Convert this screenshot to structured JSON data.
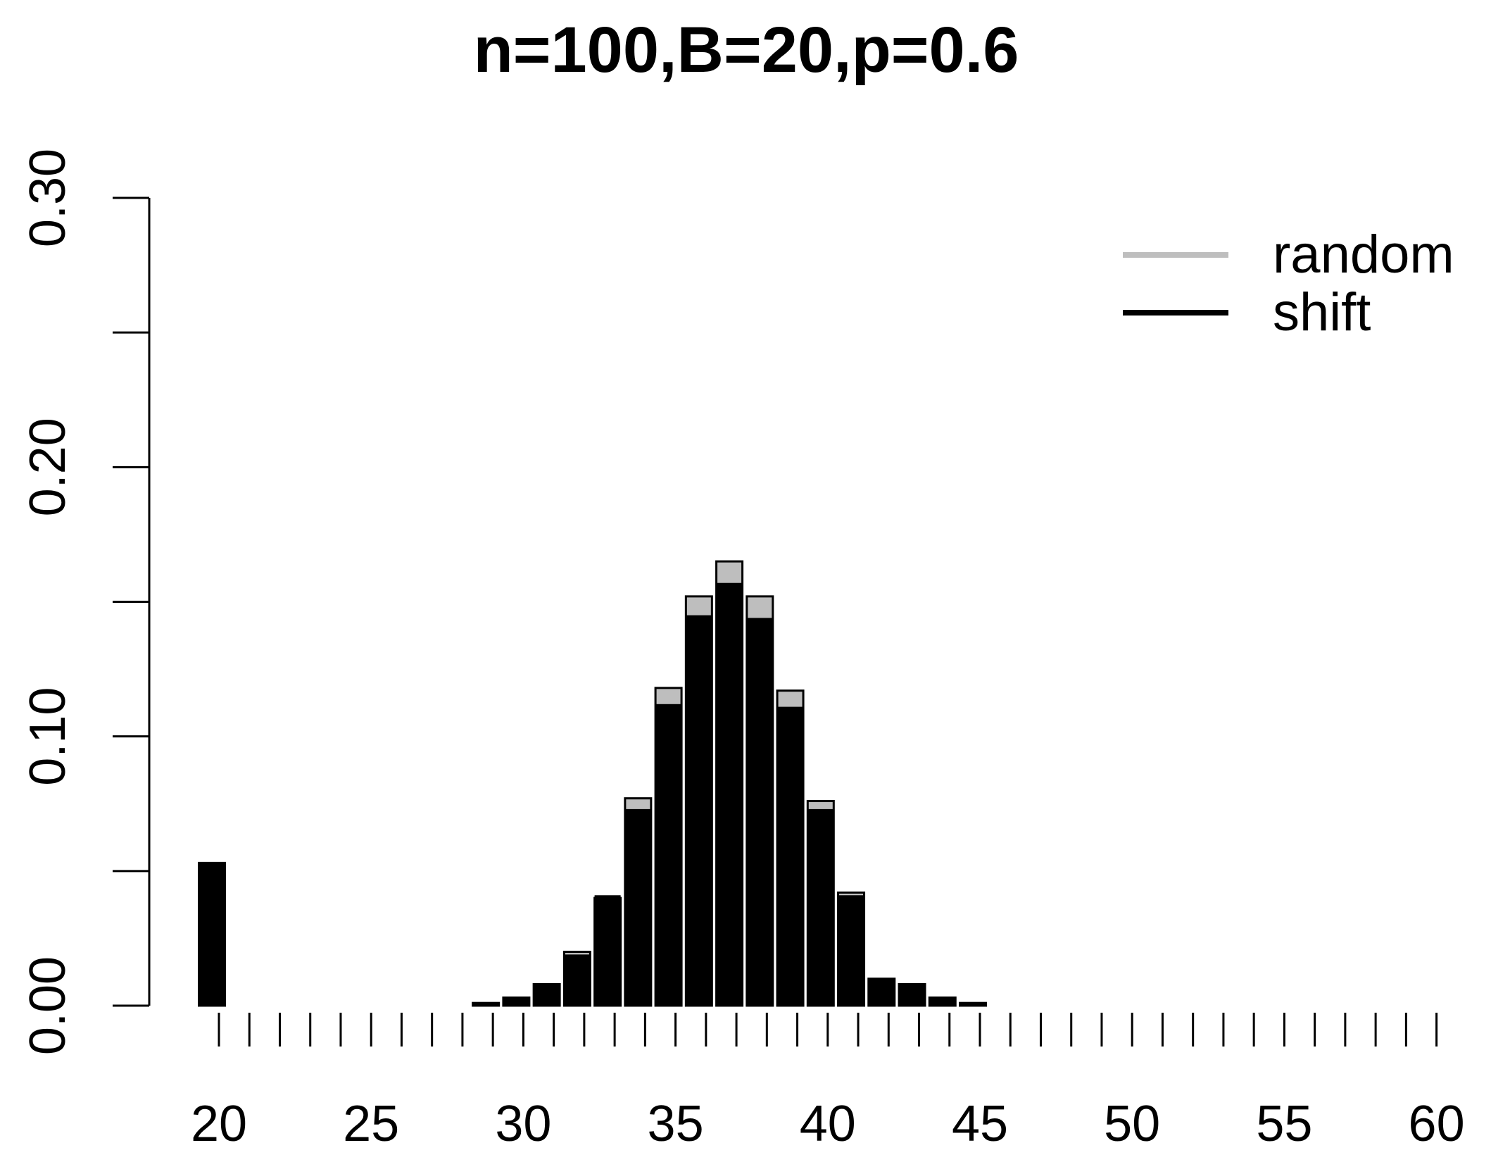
{
  "chart_data": {
    "type": "bar",
    "title": "n=100,B=20,p=0.6",
    "xlabel": "",
    "ylabel": "",
    "ylim": [
      0,
      0.3
    ],
    "yticks": [
      "0.00",
      "0.10",
      "0.20",
      "0.30"
    ],
    "xticks": [
      "20",
      "25",
      "30",
      "35",
      "40",
      "45",
      "50",
      "55",
      "60"
    ],
    "grid": false,
    "legend_position": "top-right",
    "categories": [
      20,
      21,
      22,
      23,
      24,
      25,
      26,
      27,
      28,
      29,
      30,
      31,
      32,
      33,
      34,
      35,
      36,
      37,
      38,
      39,
      40,
      41,
      42,
      43,
      44,
      45,
      46,
      47,
      48,
      49,
      50,
      51,
      52,
      53,
      54,
      55,
      56,
      57,
      58,
      59,
      60
    ],
    "series": [
      {
        "name": "random",
        "color": "#bebebe",
        "values": [
          0.053,
          0,
          0,
          0,
          0,
          0,
          0,
          0,
          0,
          0.001,
          0.003,
          0.008,
          0.02,
          0.04,
          0.077,
          0.118,
          0.152,
          0.165,
          0.152,
          0.117,
          0.076,
          0.042,
          0.01,
          0.008,
          0.003,
          0.001,
          0,
          0,
          0,
          0,
          0,
          0,
          0,
          0,
          0,
          0,
          0,
          0,
          0,
          0,
          0
        ]
      },
      {
        "name": "shift",
        "color": "#000000",
        "values": [
          0.053,
          0,
          0,
          0,
          0,
          0,
          0,
          0,
          0,
          0.001,
          0.003,
          0.008,
          0.019,
          0.041,
          0.073,
          0.112,
          0.145,
          0.157,
          0.144,
          0.111,
          0.073,
          0.041,
          0.01,
          0.008,
          0.003,
          0.001,
          0,
          0,
          0,
          0,
          0,
          0,
          0,
          0,
          0,
          0,
          0,
          0,
          0,
          0,
          0
        ]
      }
    ]
  }
}
